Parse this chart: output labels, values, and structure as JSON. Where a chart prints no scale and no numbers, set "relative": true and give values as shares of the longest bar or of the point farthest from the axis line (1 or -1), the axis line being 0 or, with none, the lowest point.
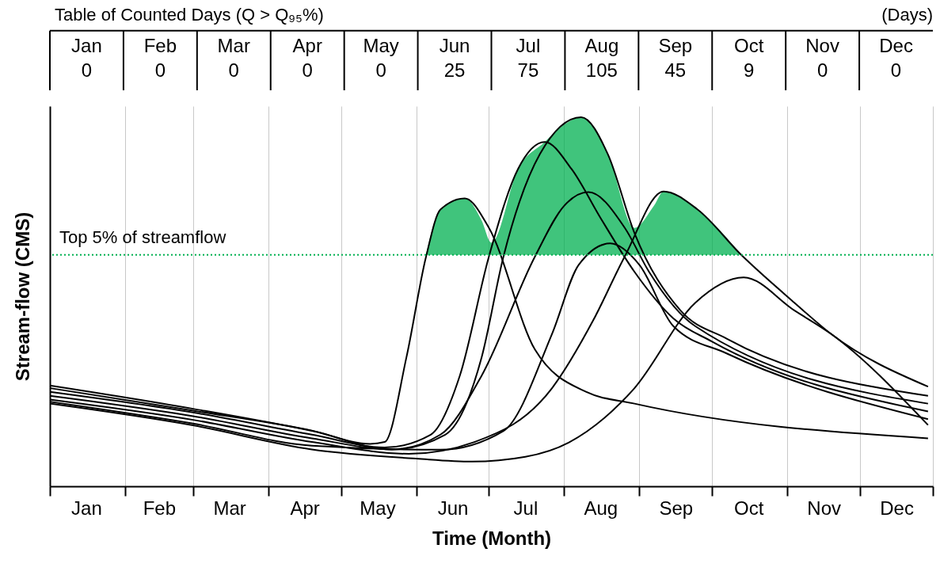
{
  "chart_data": [
    {
      "type": "other",
      "title": "Table of Counted Days (Q > Q₉₅%)",
      "annotations": [
        "(Days)"
      ],
      "data_labels": true,
      "categories": [
        "Jan",
        "Feb",
        "Mar",
        "Apr",
        "May",
        "Jun",
        "Jul",
        "Aug",
        "Sep",
        "Oct",
        "Nov",
        "Dec"
      ],
      "values": [
        0,
        0,
        0,
        0,
        0,
        25,
        75,
        105,
        45,
        9,
        0,
        0
      ]
    },
    {
      "type": "line",
      "relative": true,
      "xlabel": "Time (Month)",
      "ylabel": "Stream-flow (CMS)",
      "grid": "x",
      "xlim": [
        "--01-01",
        "--12-31"
      ],
      "xticks": [
        {
          "value": "--01-01",
          "label": null
        },
        {
          "value": "--01-16",
          "label": "Jan"
        },
        {
          "value": "--02-01",
          "label": null
        },
        {
          "value": "--02-15",
          "label": "Feb"
        },
        {
          "value": "--03-01",
          "label": null
        },
        {
          "value": "--03-16",
          "label": "Mar"
        },
        {
          "value": "--04-01",
          "label": null
        },
        {
          "value": "--04-16",
          "label": "Apr"
        },
        {
          "value": "--05-01",
          "label": null
        },
        {
          "value": "--05-16",
          "label": "May"
        },
        {
          "value": "--06-01",
          "label": null
        },
        {
          "value": "--06-16",
          "label": "Jun"
        },
        {
          "value": "--07-01",
          "label": null
        },
        {
          "value": "--07-16",
          "label": "Jul"
        },
        {
          "value": "--08-01",
          "label": null
        },
        {
          "value": "--08-16",
          "label": "Aug"
        },
        {
          "value": "--09-01",
          "label": null
        },
        {
          "value": "--09-16",
          "label": "Sep"
        },
        {
          "value": "--10-01",
          "label": null
        },
        {
          "value": "--10-16",
          "label": "Oct"
        },
        {
          "value": "--11-01",
          "label": null
        },
        {
          "value": "--11-16",
          "label": "Nov"
        },
        {
          "value": "--12-01",
          "label": null
        },
        {
          "value": "--12-16",
          "label": "Dec"
        },
        {
          "value": "--12-31",
          "label": null
        }
      ],
      "series": [
        {
          "type": "area",
          "color": "#00b050",
          "x": [
            "--06-05",
            "--06-11",
            "--06-21",
            "--06-28",
            "--07-02",
            "--07-13",
            "--07-24",
            "--08-01",
            "--08-08",
            "--08-19",
            "--08-30",
            "--09-07",
            "--09-11",
            "--09-25",
            "--10-13"
          ],
          "values": [
            0.627,
            0.75,
            0.78,
            0.72,
            0.66,
            0.86,
            0.933,
            0.98,
            1.0,
            0.9,
            0.7,
            0.76,
            0.799,
            0.75,
            0.627
          ]
        },
        {
          "type": "line",
          "color": "#000000",
          "x": [
            "--01-01",
            "--03-01",
            "--04-19",
            "--05-13",
            "--05-19",
            "--05-28",
            "--06-05",
            "--06-11",
            "--06-21",
            "--07-01",
            "--07-20",
            "--08-10",
            "--08-30",
            "--12-29"
          ],
          "values": [
            0.266,
            0.205,
            0.151,
            0.115,
            0.12,
            0.35,
            0.62,
            0.75,
            0.78,
            0.7,
            0.37,
            0.256,
            0.224,
            0.13
          ]
        },
        {
          "type": "line",
          "color": "#000000",
          "x": [
            "--01-01",
            "--03-01",
            "--04-19",
            "--05-19",
            "--06-07",
            "--06-19",
            "--07-01",
            "--07-13",
            "--07-24",
            "--08-04",
            "--08-16",
            "--08-30",
            "--09-15",
            "--10-01",
            "--12-29"
          ],
          "values": [
            0.256,
            0.2,
            0.14,
            0.105,
            0.14,
            0.3,
            0.623,
            0.86,
            0.933,
            0.86,
            0.727,
            0.581,
            0.455,
            0.392,
            0.203
          ]
        },
        {
          "type": "line",
          "color": "#000000",
          "x": [
            "--01-01",
            "--03-01",
            "--04-19",
            "--05-22",
            "--06-13",
            "--06-28",
            "--07-07",
            "--07-22",
            "--08-08",
            "--08-19",
            "--08-30",
            "--09-18",
            "--10-07",
            "--12-29"
          ],
          "values": [
            0.273,
            0.21,
            0.15,
            0.1,
            0.14,
            0.35,
            0.623,
            0.9,
            1.0,
            0.9,
            0.686,
            0.476,
            0.4,
            0.245
          ]
        },
        {
          "type": "line",
          "color": "#000000",
          "x": [
            "--01-01",
            "--03-01",
            "--04-19",
            "--05-22",
            "--06-11",
            "--06-28",
            "--07-20",
            "--08-01",
            "--08-11",
            "--08-26",
            "--09-05",
            "--09-24",
            "--12-29"
          ],
          "values": [
            0.245,
            0.19,
            0.13,
            0.1,
            0.14,
            0.3,
            0.623,
            0.76,
            0.797,
            0.7,
            0.581,
            0.434,
            0.224
          ]
        },
        {
          "type": "line",
          "color": "#000000",
          "x": [
            "--01-01",
            "--03-01",
            "--04-19",
            "--05-29",
            "--06-25",
            "--07-27",
            "--08-13",
            "--08-26",
            "--09-11",
            "--09-25",
            "--10-13",
            "--11-04",
            "--11-19",
            "--12-29"
          ],
          "values": [
            0.235,
            0.18,
            0.12,
            0.088,
            0.12,
            0.266,
            0.45,
            0.623,
            0.799,
            0.75,
            0.627,
            0.497,
            0.413,
            0.27
          ]
        },
        {
          "type": "line",
          "color": "#000000",
          "x": [
            "--01-01",
            "--03-01",
            "--04-19",
            "--06-11",
            "--07-07",
            "--07-27",
            "--08-07",
            "--08-20",
            "--09-01",
            "--09-15",
            "--10-07",
            "--12-29"
          ],
          "values": [
            0.229,
            0.17,
            0.11,
            0.099,
            0.15,
            0.413,
            0.6,
            0.658,
            0.6,
            0.434,
            0.36,
            0.182
          ]
        },
        {
          "type": "line",
          "color": "#000000",
          "x": [
            "--01-01",
            "--03-01",
            "--04-19",
            "--06-01",
            "--06-24",
            "--07-16",
            "--08-03",
            "--08-30",
            "--09-24",
            "--10-14",
            "--11-04",
            "--11-19",
            "--12-29"
          ],
          "values": [
            0.224,
            0.165,
            0.1,
            0.075,
            0.067,
            0.08,
            0.119,
            0.266,
            0.497,
            0.566,
            0.476,
            0.413,
            0.166
          ]
        }
      ],
      "ref_lines": [
        {
          "axis": "y",
          "value": 0.627,
          "label": "Top 5% of streamflow",
          "color": "#00b050",
          "line_style": "dotted"
        }
      ]
    }
  ]
}
